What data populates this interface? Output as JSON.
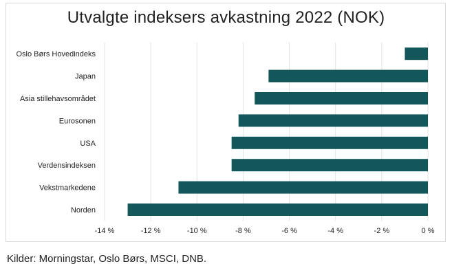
{
  "chart_data": {
    "type": "bar",
    "orientation": "horizontal",
    "title": "Utvalgte indeksers avkastning 2022 (NOK)",
    "categories": [
      "Oslo Børs Hovedindeks",
      "Japan",
      "Asia stillehavsområdet",
      "Eurosonen",
      "USA",
      "Verdensindeksen",
      "Vekstmarkedene",
      "Norden"
    ],
    "values": [
      -1.0,
      -6.9,
      -7.5,
      -8.2,
      -8.5,
      -8.5,
      -10.8,
      -13.0
    ],
    "xlim": [
      -14,
      0
    ],
    "ticks": [
      -14,
      -12,
      -10,
      -8,
      -6,
      -4,
      -2,
      0
    ],
    "tick_suffix": " %",
    "gridlines": true,
    "bar_color": "#14575a"
  },
  "source": "Kilder: Morningstar, Oslo Børs, MSCI, DNB."
}
